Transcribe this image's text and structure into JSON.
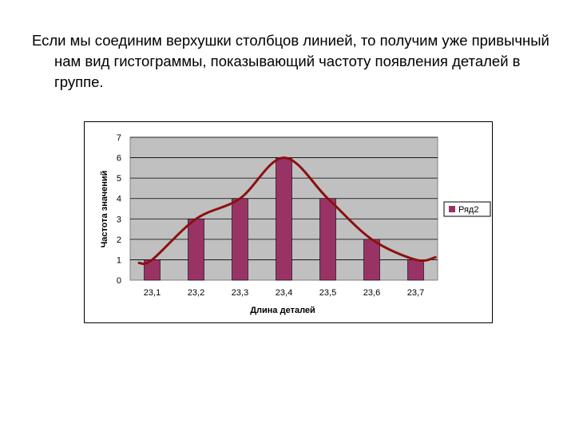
{
  "slide": {
    "text": "Если мы соединим верхушки столбцов линией, то получим уже привычный нам вид гистограммы, показывающий частоту появления деталей в группе."
  },
  "chart_data": {
    "type": "bar",
    "categories": [
      "23,1",
      "23,2",
      "23,3",
      "23,4",
      "23,5",
      "23,6",
      "23,7"
    ],
    "series": [
      {
        "name": "Ряд2",
        "values": [
          1,
          3,
          4,
          6,
          4,
          2,
          1
        ]
      }
    ],
    "y_ticks": [
      "0",
      "1",
      "2",
      "3",
      "4",
      "5",
      "6",
      "7"
    ],
    "ylim": [
      0,
      7
    ],
    "xlabel": "Длина деталей",
    "ylabel": "Частота значений",
    "grid": true,
    "legend": "right",
    "overlay_curve": "smooth line connecting bar tops",
    "colors": {
      "bar": "#993366",
      "curve": "#8b1010",
      "plot_area": "#c0c0c0",
      "grid": "#000000"
    }
  }
}
